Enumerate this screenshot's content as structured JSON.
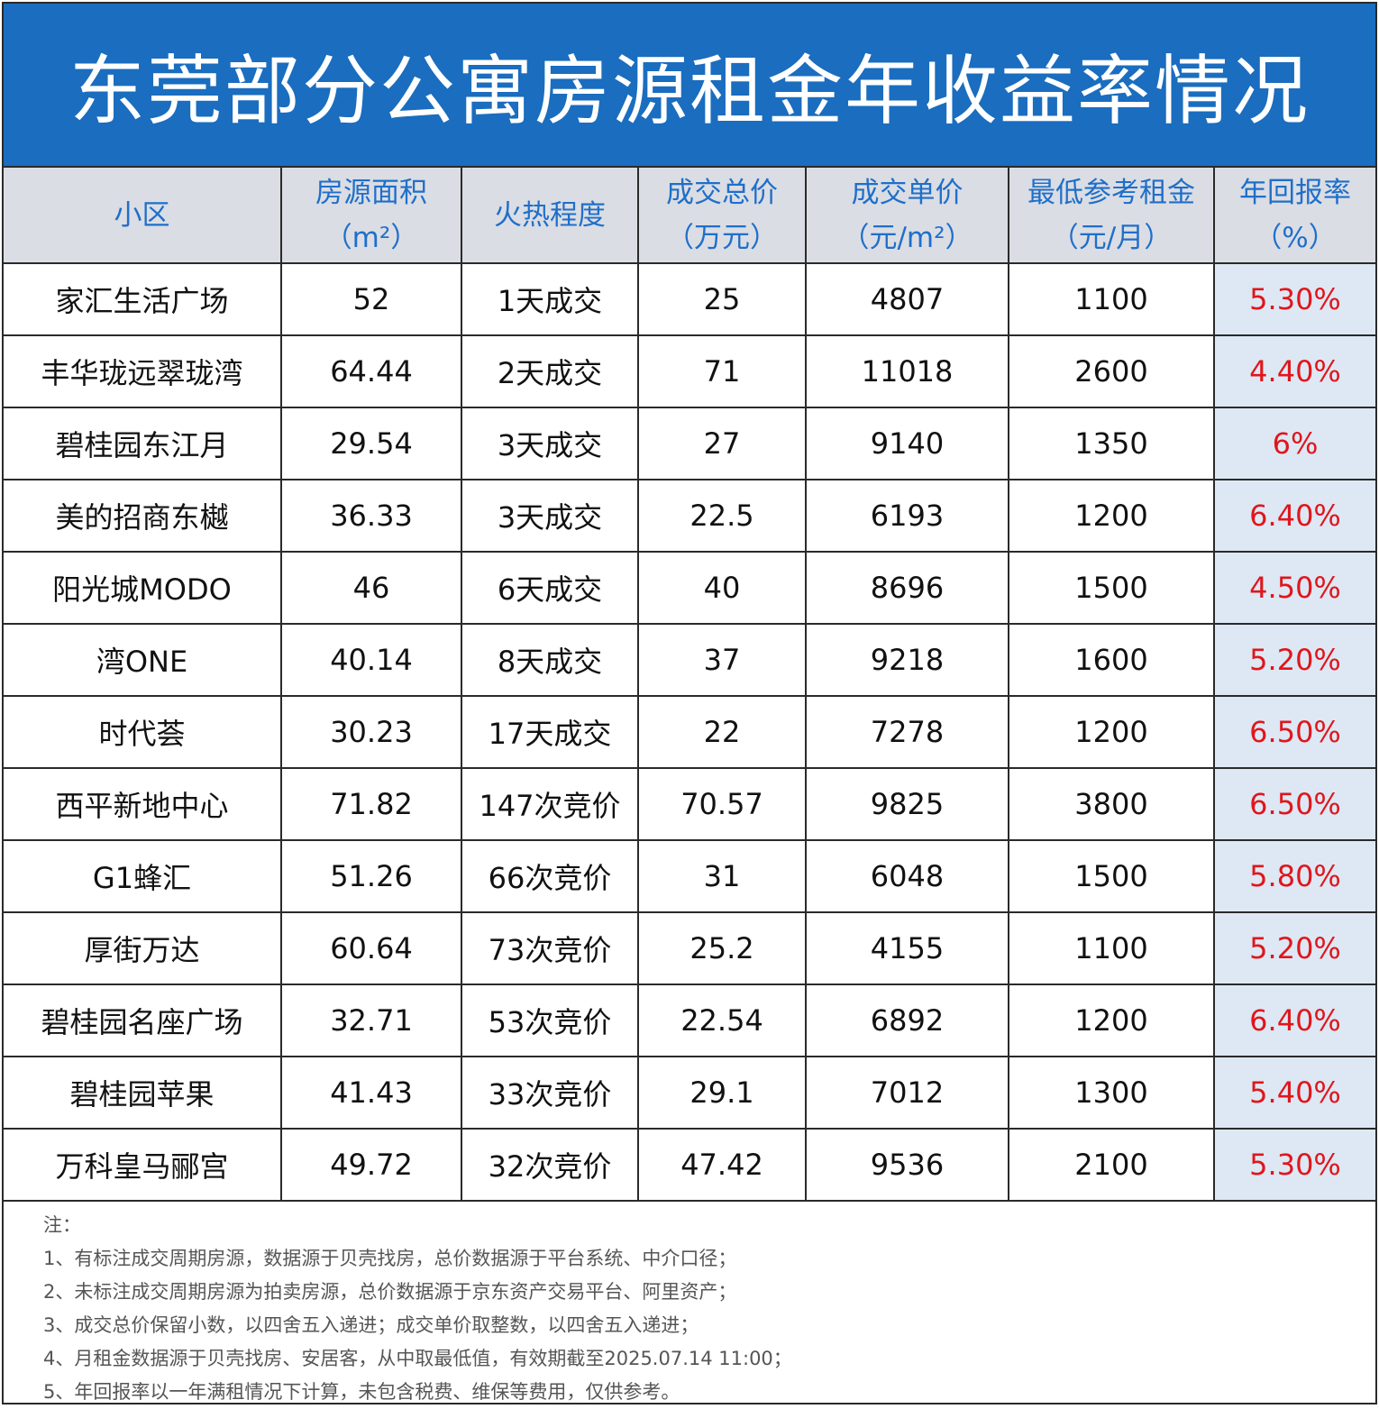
{
  "title": "东莞部分公寓房源租金年收益率情况",
  "headers": [
    {
      "line1": "小区",
      "line2": ""
    },
    {
      "line1": "房源面积",
      "line2": "（m²）"
    },
    {
      "line1": "火热程度",
      "line2": ""
    },
    {
      "line1": "成交总价",
      "line2": "（万元）"
    },
    {
      "line1": "成交单价",
      "line2": "（元/m²）"
    },
    {
      "line1": "最低参考租金",
      "line2": "（元/月）"
    },
    {
      "line1": "年回报率",
      "line2": "（%）"
    }
  ],
  "rows": [
    [
      "家汇生活广场",
      "52",
      "1天成交",
      "25",
      "4807",
      "1100",
      "5.30%"
    ],
    [
      "丰华珑远翠珑湾",
      "64.44",
      "2天成交",
      "71",
      "11018",
      "2600",
      "4.40%"
    ],
    [
      "碧桂园东江月",
      "29.54",
      "3天成交",
      "27",
      "9140",
      "1350",
      "6%"
    ],
    [
      "美的招商东樾",
      "36.33",
      "3天成交",
      "22.5",
      "6193",
      "1200",
      "6.40%"
    ],
    [
      "阳光城MODO",
      "46",
      "6天成交",
      "40",
      "8696",
      "1500",
      "4.50%"
    ],
    [
      "湾ONE",
      "40.14",
      "8天成交",
      "37",
      "9218",
      "1600",
      "5.20%"
    ],
    [
      "时代荟",
      "30.23",
      "17天成交",
      "22",
      "7278",
      "1200",
      "6.50%"
    ],
    [
      "西平新地中心",
      "71.82",
      "147次竞价",
      "70.57",
      "9825",
      "3800",
      "6.50%"
    ],
    [
      "G1蜂汇",
      "51.26",
      "66次竞价",
      "31",
      "6048",
      "1500",
      "5.80%"
    ],
    [
      "厚街万达",
      "60.64",
      "73次竞价",
      "25.2",
      "4155",
      "1100",
      "5.20%"
    ],
    [
      "碧桂园名座广场",
      "32.71",
      "53次竞价",
      "22.54",
      "6892",
      "1200",
      "6.40%"
    ],
    [
      "碧桂园苹果",
      "41.43",
      "33次竞价",
      "29.1",
      "7012",
      "1300",
      "5.40%"
    ],
    [
      "万科皇马郦宫",
      "49.72",
      "32次竞价",
      "47.42",
      "9536",
      "2100",
      "5.30%"
    ]
  ],
  "notes": [
    "注：",
    "1、有标注成交周期房源，数据源于贝壳找房，总价数据源于平台系统、中介口径；",
    "2、未标注成交周期房源为拍卖房源，总价数据源于京东资产交易平台、阿里资产；",
    "3、成交总价保留小数，以四舍五入递进；成交单价取整数，以四舍五入递进；",
    "4、月租金数据源于贝壳找房、安居客，从中取最低值，有效期截至2025.07.14 11:00；",
    "5、年回报率以一年满租情况下计算，未包含税费、维保等费用，仅供参考。"
  ],
  "colors": {
    "title_bg": "#1a6dbf",
    "header_text": "#1f6fc9",
    "rate_text": "#e0161c",
    "rate_bg": "#dde8f4"
  }
}
